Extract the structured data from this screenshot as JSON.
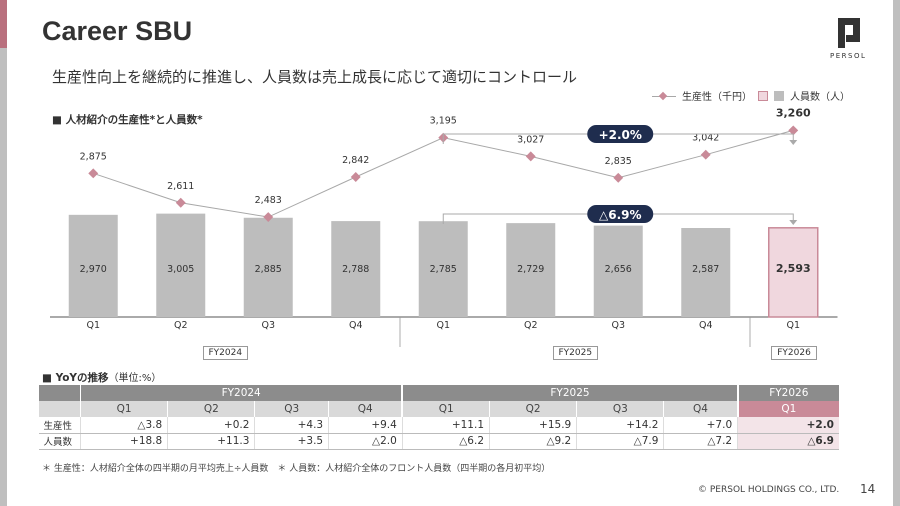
{
  "title": "Career SBU",
  "logo_text": "PERSOL",
  "subtitle": "生産性向上を継続的に推進し、人員数は売上成長に応じて適切にコントロール",
  "chart_section_label": "■ 人材紹介の生産性*と人員数*",
  "legend": {
    "productivity": "生産性（千円）",
    "headcount": "人員数（人）"
  },
  "colors": {
    "accent": "#b9707e",
    "bar": "#bdbdbd",
    "bar_highlight_fill": "#f0d7de",
    "bar_highlight_border": "#c98a98",
    "line": "#a8a8a8",
    "marker": "#c98a98",
    "callout": "#1f2d4e"
  },
  "chart_data": {
    "type": "bar",
    "categories": [
      "Q1",
      "Q2",
      "Q3",
      "Q4",
      "Q1",
      "Q2",
      "Q3",
      "Q4",
      "Q1"
    ],
    "fiscal_groups": [
      {
        "label": "FY2024",
        "start": 0,
        "end": 3
      },
      {
        "label": "FY2025",
        "start": 4,
        "end": 7
      },
      {
        "label": "FY2026",
        "start": 8,
        "end": 8
      }
    ],
    "series": [
      {
        "name": "人員数（人）",
        "type": "bar",
        "values": [
          2970,
          3005,
          2885,
          2788,
          2785,
          2729,
          2656,
          2587,
          2593
        ]
      },
      {
        "name": "生産性（千円）",
        "type": "line",
        "values": [
          2875,
          2611,
          2483,
          2842,
          3195,
          3027,
          2835,
          3042,
          3260
        ]
      }
    ],
    "annotations": [
      {
        "label": "+2.0%",
        "series": "生産性（千円）",
        "from": 4,
        "to": 8
      },
      {
        "label": "△6.9%",
        "series": "人員数（人）",
        "from": 4,
        "to": 8
      }
    ],
    "highlight_index": 8
  },
  "yoy": {
    "section_label": "■ YoYの推移",
    "unit": "（単位:%）",
    "fy_headers": [
      {
        "label": "FY2024",
        "span": 4
      },
      {
        "label": "FY2025",
        "span": 4
      },
      {
        "label": "FY2026",
        "span": 1
      }
    ],
    "quarters": [
      "Q1",
      "Q2",
      "Q3",
      "Q4",
      "Q1",
      "Q2",
      "Q3",
      "Q4",
      "Q1"
    ],
    "rows": [
      {
        "label": "生産性",
        "values": [
          "△3.8",
          "+0.2",
          "+4.3",
          "+9.4",
          "+11.1",
          "+15.9",
          "+14.2",
          "+7.0",
          "+2.0"
        ]
      },
      {
        "label": "人員数",
        "values": [
          "+18.8",
          "+11.3",
          "+3.5",
          "△2.0",
          "△6.2",
          "△9.2",
          "△7.9",
          "△7.2",
          "△6.9"
        ]
      }
    ]
  },
  "footnote": "＊ 生産性：人材紹介全体の四半期の月平均売上÷人員数　＊ 人員数：人材紹介全体のフロント人員数（四半期の各月初平均）",
  "copyright": "© PERSOL HOLDINGS CO., LTD.",
  "page_number": "14"
}
